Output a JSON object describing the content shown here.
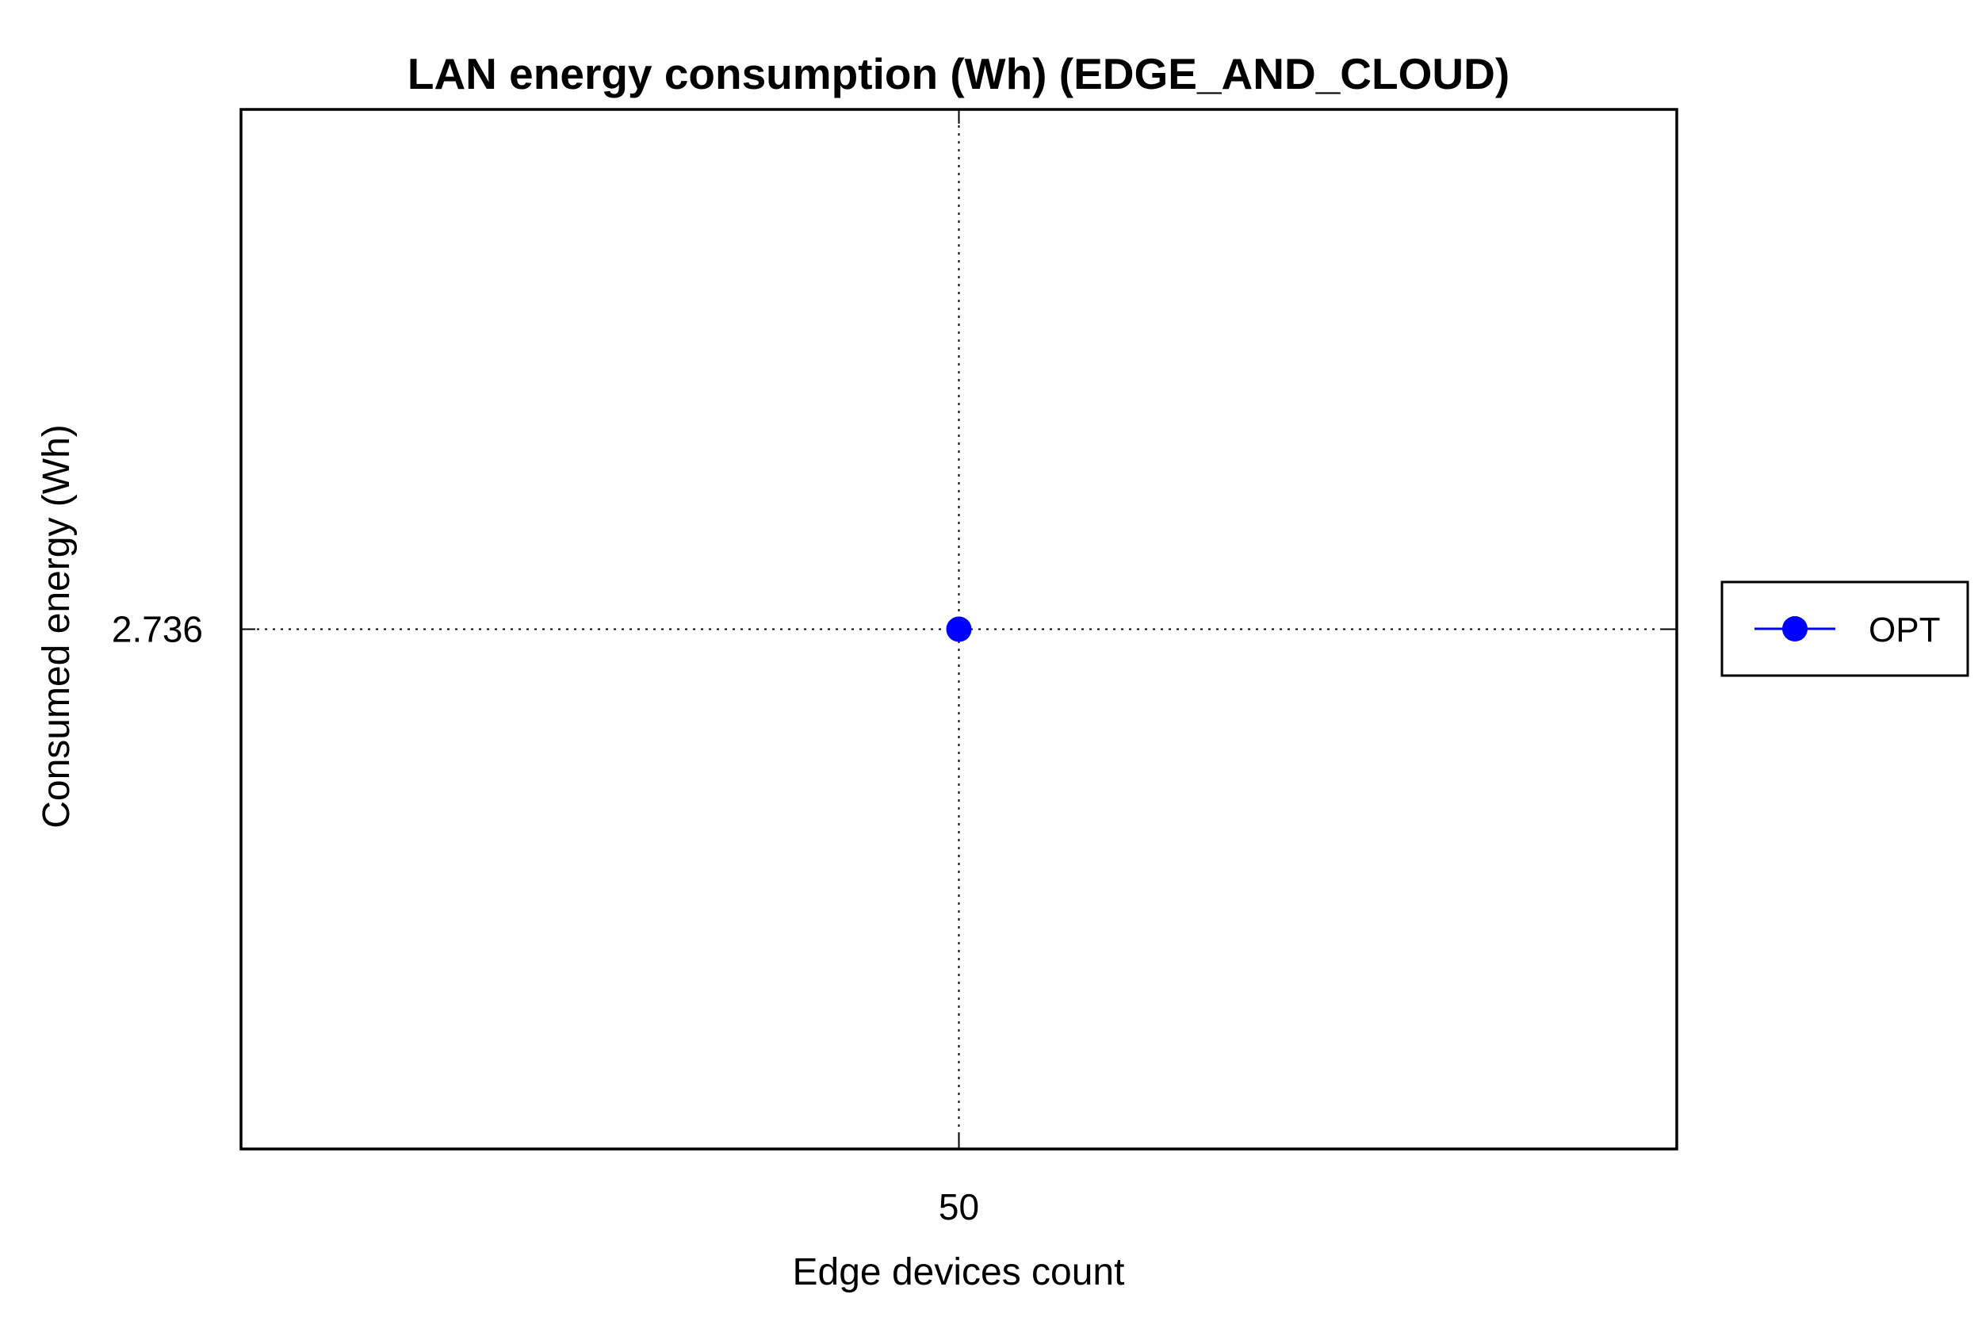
{
  "chart_data": {
    "type": "line",
    "title": "LAN energy consumption (Wh) (EDGE_AND_CLOUD)",
    "xlabel": "Edge devices count",
    "ylabel": "Consumed energy (Wh)",
    "x_ticks": [
      50
    ],
    "x_tick_labels": [
      "50"
    ],
    "y_ticks": [
      2.736
    ],
    "y_tick_labels": [
      "2.736"
    ],
    "xlim": [
      49,
      51
    ],
    "ylim": [
      2.735,
      2.737
    ],
    "grid": true,
    "legend_position": "right",
    "series": [
      {
        "name": "OPT",
        "x": [
          50
        ],
        "y": [
          2.736
        ],
        "color": "#0000ff",
        "marker": "circle"
      }
    ]
  }
}
